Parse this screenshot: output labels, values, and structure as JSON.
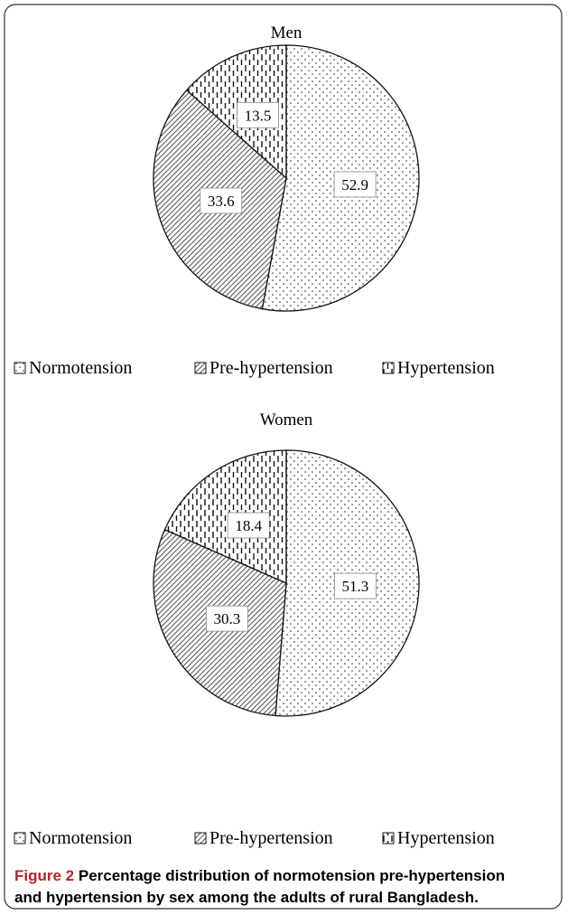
{
  "chart_data": [
    {
      "type": "pie",
      "title": "Men",
      "categories": [
        "Normotension",
        "Pre-hypertension",
        "Hypertension"
      ],
      "values": [
        52.9,
        33.6,
        13.5
      ],
      "patterns": [
        "dots",
        "diagonal",
        "vertical-dashes"
      ]
    },
    {
      "type": "pie",
      "title": "Women",
      "categories": [
        "Normotension",
        "Pre-hypertension",
        "Hypertension"
      ],
      "values": [
        51.3,
        30.3,
        18.4
      ],
      "patterns": [
        "dots",
        "diagonal",
        "vertical-dashes"
      ]
    }
  ],
  "caption": {
    "label": "Figure 2",
    "lines": [
      "Percentage distribution of normotension pre-hypertension",
      "and hypertension by sex among the adults of rural Bangladesh."
    ]
  }
}
